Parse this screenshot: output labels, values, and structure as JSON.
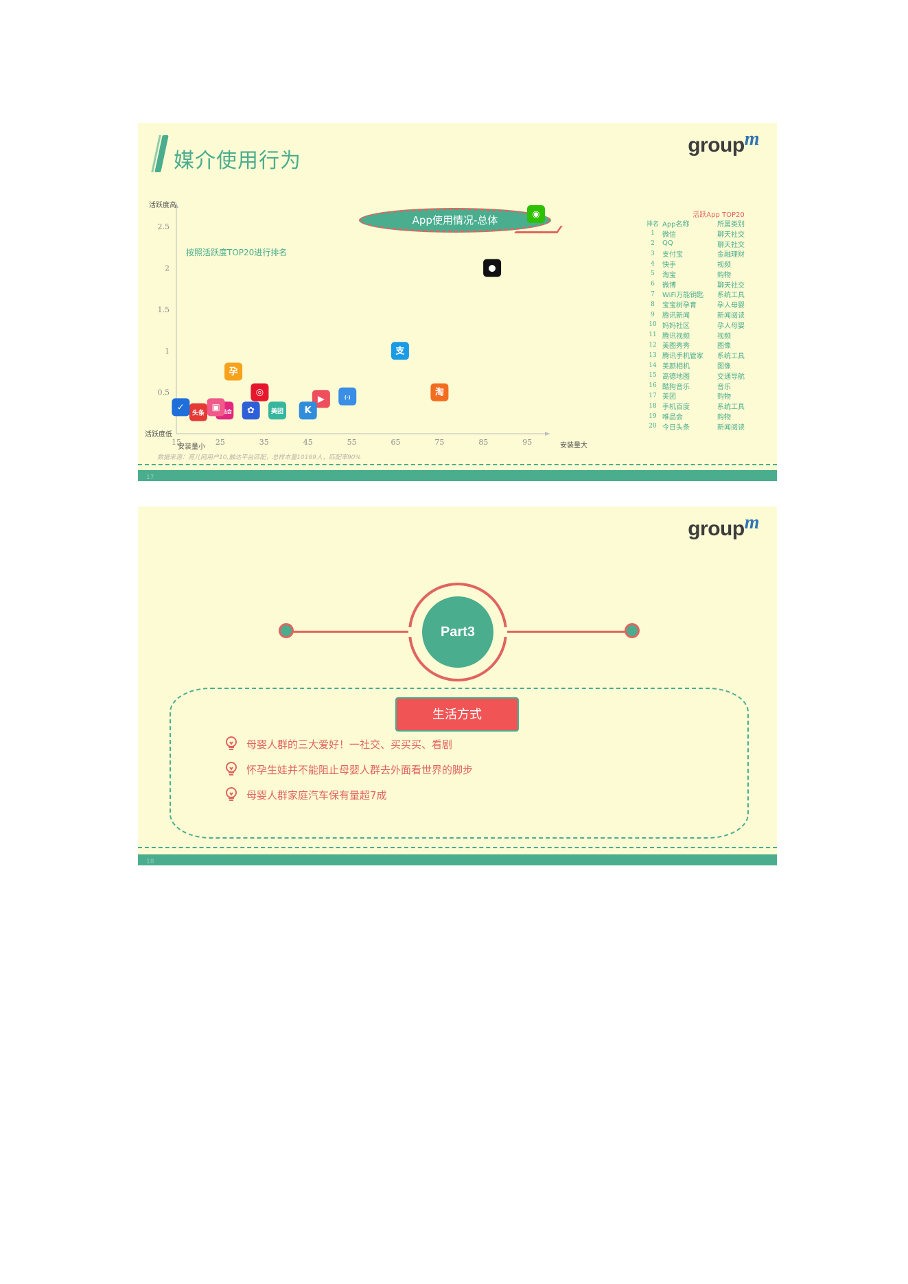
{
  "slide1": {
    "title": "媒介使用行为",
    "logo_text": "group",
    "logo_m": "m",
    "pill": "App使用情况-总体",
    "note": "按照活跃度TOP20进行排名",
    "source": "数据来源：育儿网用户10,触达平台匹配，总样本量10169人，匹配率90%",
    "page_number": "17",
    "chart_data": {
      "type": "scatter",
      "title": "",
      "xlabel_min": "安装量小",
      "xlabel_max": "安装量大",
      "ylabel_max": "活跃度高",
      "ylabel_min": "活跃度低",
      "x_ticks": [
        "15",
        "25",
        "35",
        "45",
        "55",
        "65",
        "75",
        "85",
        "95"
      ],
      "y_ticks": [
        "0.5",
        "1",
        "1.5",
        "2",
        "2.5"
      ],
      "xlim": [
        15,
        97
      ],
      "ylim": [
        0,
        2.7
      ],
      "points": [
        {
          "app": "微信",
          "x": 97,
          "y": 2.65,
          "icon": "wechat-icon",
          "color": "#2dc100",
          "glyph": "◉"
        },
        {
          "app": "QQ",
          "x": 87,
          "y": 2.0,
          "icon": "qq-icon",
          "color": "#111111",
          "glyph": "●"
        },
        {
          "app": "支付宝",
          "x": 66,
          "y": 1.0,
          "icon": "alipay-icon",
          "color": "#1a9be6",
          "glyph": "支"
        },
        {
          "app": "淘宝",
          "x": 75,
          "y": 0.5,
          "icon": "taobao-icon",
          "color": "#f36d20",
          "glyph": "淘"
        },
        {
          "app": "WiFi万能钥匙",
          "x": 54,
          "y": 0.45,
          "icon": "wifi-icon",
          "color": "#3a8ee6",
          "glyph": "(·)"
        },
        {
          "app": "快手",
          "x": 48,
          "y": 0.42,
          "icon": "kuaishou-icon",
          "color": "#ef4f5c",
          "glyph": "▶"
        },
        {
          "app": "酷狗音乐",
          "x": 45,
          "y": 0.28,
          "icon": "kugou-icon",
          "color": "#2f8ddc",
          "glyph": "K"
        },
        {
          "app": "美团",
          "x": 38,
          "y": 0.28,
          "icon": "meituan-icon",
          "color": "#36b59f",
          "glyph": "美团"
        },
        {
          "app": "微博",
          "x": 34,
          "y": 0.5,
          "icon": "weibo-icon",
          "color": "#e6162d",
          "glyph": "◎"
        },
        {
          "app": "手机百度",
          "x": 32,
          "y": 0.28,
          "icon": "baidu-icon",
          "color": "#2f5fd8",
          "glyph": "✿"
        },
        {
          "app": "宝宝树孕育",
          "x": 28,
          "y": 0.75,
          "icon": "babytree-icon",
          "color": "#f7a21b",
          "glyph": "孕"
        },
        {
          "app": "唯品会",
          "x": 26,
          "y": 0.28,
          "icon": "vip-icon",
          "color": "#e1287e",
          "glyph": "唯品会"
        },
        {
          "app": "美图秀秀",
          "x": 24,
          "y": 0.32,
          "icon": "meitu-icon",
          "color": "#ef5a8a",
          "glyph": "▣"
        },
        {
          "app": "今日头条",
          "x": 20,
          "y": 0.26,
          "icon": "toutiao-icon",
          "color": "#e53935",
          "glyph": "头条"
        },
        {
          "app": "腾讯手机管家",
          "x": 16,
          "y": 0.32,
          "icon": "tencent-manager-icon",
          "color": "#1e6fd9",
          "glyph": "✓"
        }
      ]
    },
    "legend": {
      "caption": "活跃App TOP20",
      "headers": [
        "排名",
        "App名称",
        "所属类别"
      ],
      "rows": [
        [
          "1",
          "微信",
          "聊天社交"
        ],
        [
          "2",
          "QQ",
          "聊天社交"
        ],
        [
          "3",
          "支付宝",
          "金融理财"
        ],
        [
          "4",
          "快手",
          "视频"
        ],
        [
          "5",
          "淘宝",
          "购物"
        ],
        [
          "6",
          "微博",
          "聊天社交"
        ],
        [
          "7",
          "WiFi万能钥匙",
          "系统工具"
        ],
        [
          "8",
          "宝宝树孕育",
          "孕人母婴"
        ],
        [
          "9",
          "腾讯新闻",
          "新闻阅读"
        ],
        [
          "10",
          "妈妈社区",
          "孕人母婴"
        ],
        [
          "11",
          "腾讯视频",
          "视频"
        ],
        [
          "12",
          "美图秀秀",
          "图像"
        ],
        [
          "13",
          "腾讯手机管家",
          "系统工具"
        ],
        [
          "14",
          "美颜相机",
          "图像"
        ],
        [
          "15",
          "高德地图",
          "交通导航"
        ],
        [
          "16",
          "酷狗音乐",
          "音乐"
        ],
        [
          "17",
          "美团",
          "购物"
        ],
        [
          "18",
          "手机百度",
          "系统工具"
        ],
        [
          "19",
          "唯品会",
          "购物"
        ],
        [
          "20",
          "今日头条",
          "新闻阅读"
        ]
      ]
    }
  },
  "slide2": {
    "logo_text": "group",
    "logo_m": "m",
    "part": "Part3",
    "tag": "生活方式",
    "bullets": [
      "母婴人群的三大爱好！一社交、买买买、看剧",
      "怀孕生娃并不能阻止母婴人群去外面看世界的脚步",
      "母婴人群家庭汽车保有量超7成"
    ],
    "page_number": "18"
  },
  "colors": {
    "green": "#4aad8e",
    "red": "#e0645f",
    "bg": "#fdfbd4"
  }
}
